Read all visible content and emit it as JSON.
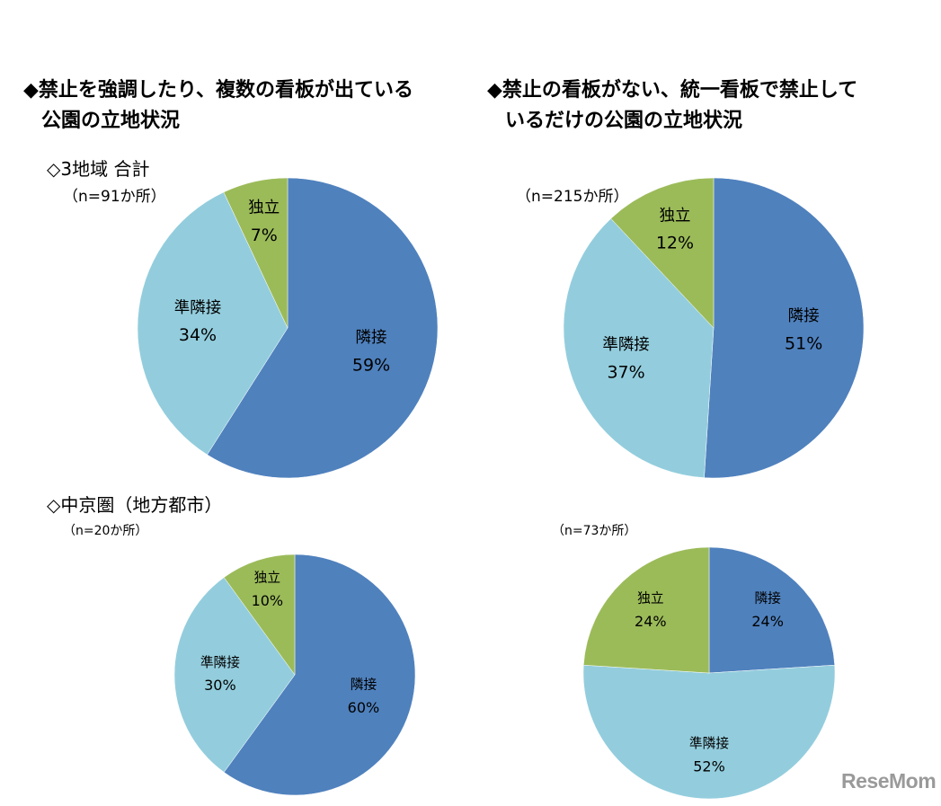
{
  "headings": {
    "left": {
      "line1": "◆禁止を強調したり、複数の看板が出ている",
      "line2": "公園の立地状況"
    },
    "right": {
      "line1": "◆禁止の看板がない、統一看板で禁止して",
      "line2": "いるだけの公園の立地状況"
    }
  },
  "subheads": {
    "total": "◇3地域 合計",
    "chukyo": "◇中京圏（地方都市）"
  },
  "notes": {
    "top_left": "（n=91か所）",
    "top_right": "（n=215か所）",
    "bottom_left": "（n=20か所）",
    "bottom_right": "（n=73か所）"
  },
  "logo": "ReseMom",
  "colors": {
    "adjacent": "#4f81bd",
    "semi_adjacent": "#93cddd",
    "independent": "#9bbb59"
  },
  "chart_data": [
    {
      "type": "pie",
      "slices": [
        {
          "label": "隣接",
          "value": 59,
          "value_label": "59%"
        },
        {
          "label": "準隣接",
          "value": 34,
          "value_label": "34%"
        },
        {
          "label": "独立",
          "value": 7,
          "value_label": "7%"
        }
      ]
    },
    {
      "type": "pie",
      "slices": [
        {
          "label": "隣接",
          "value": 51,
          "value_label": "51%"
        },
        {
          "label": "準隣接",
          "value": 37,
          "value_label": "37%"
        },
        {
          "label": "独立",
          "value": 12,
          "value_label": "12%"
        }
      ]
    },
    {
      "type": "pie",
      "slices": [
        {
          "label": "隣接",
          "value": 60,
          "value_label": "60%"
        },
        {
          "label": "準隣接",
          "value": 30,
          "value_label": "30%"
        },
        {
          "label": "独立",
          "value": 10,
          "value_label": "10%"
        }
      ]
    },
    {
      "type": "pie",
      "slices": [
        {
          "label": "隣接",
          "value": 24,
          "value_label": "24%"
        },
        {
          "label": "準隣接",
          "value": 52,
          "value_label": "52%"
        },
        {
          "label": "独立",
          "value": 24,
          "value_label": "24%"
        }
      ]
    }
  ]
}
